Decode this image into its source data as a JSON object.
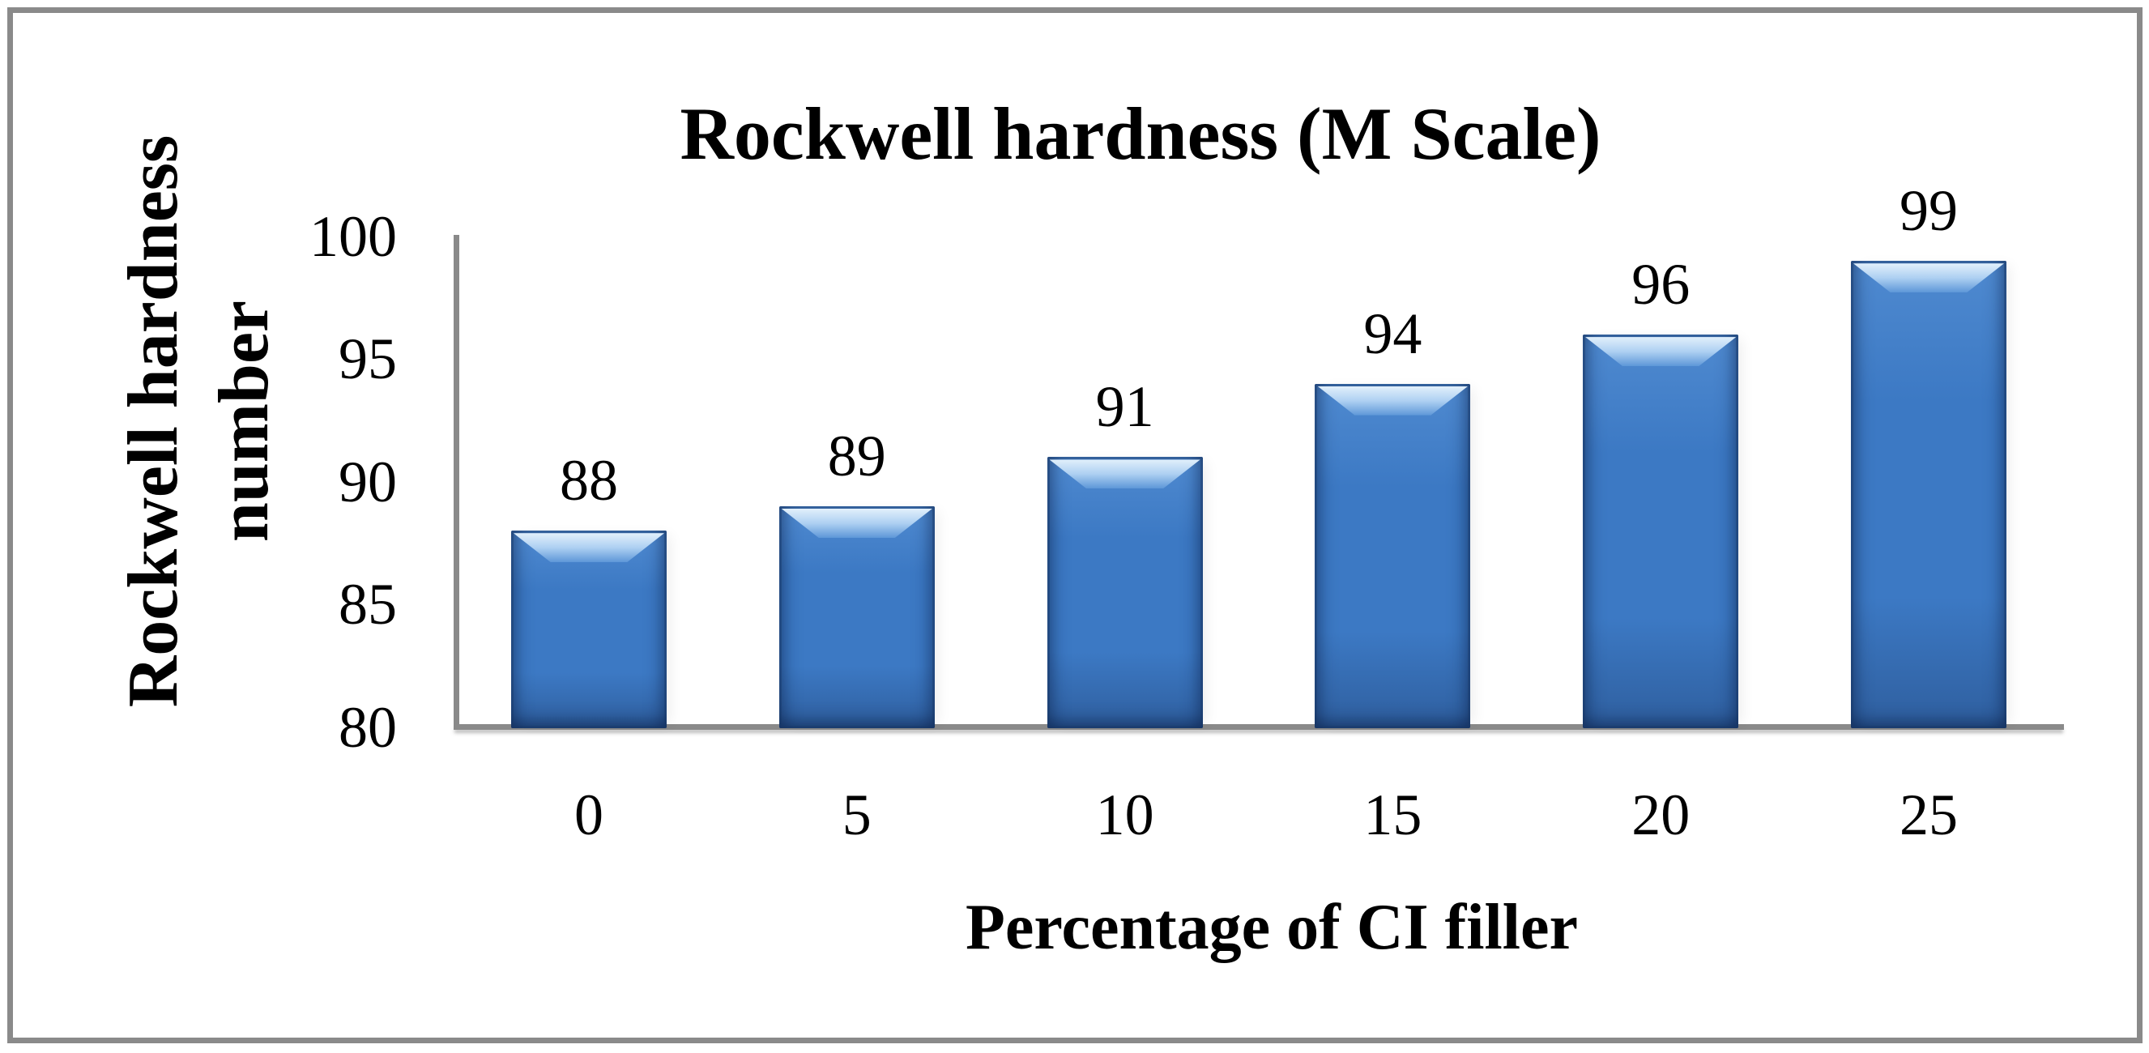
{
  "chart_data": {
    "type": "bar",
    "title": "Rockwell hardness (M Scale)",
    "xlabel": "Percentage of CI filler",
    "ylabel_lines": [
      "Rockwell hardness",
      "number"
    ],
    "categories": [
      "0",
      "5",
      "10",
      "15",
      "20",
      "25"
    ],
    "values": [
      88,
      89,
      91,
      94,
      96,
      99
    ],
    "value_labels": [
      "88",
      "89",
      "91",
      "94",
      "96",
      "99"
    ],
    "yticks": [
      100,
      95,
      90,
      85,
      80
    ],
    "ylim": [
      80,
      100
    ],
    "grid": "off",
    "legend": "none",
    "colors": {
      "bar_fill": "#3c79c4",
      "bar_fill_light": "#4f8ad0",
      "bar_fill_dark": "#2f5f9f",
      "bar_bevel_light": "#e2f0fb",
      "bar_bevel_mid": "#aed0f2",
      "bar_bevel_deep": "#5e97d8",
      "axis_line": "#8a8a8a",
      "frame_border": "#8a8a8a",
      "text": "#000000",
      "background": "#ffffff"
    }
  }
}
